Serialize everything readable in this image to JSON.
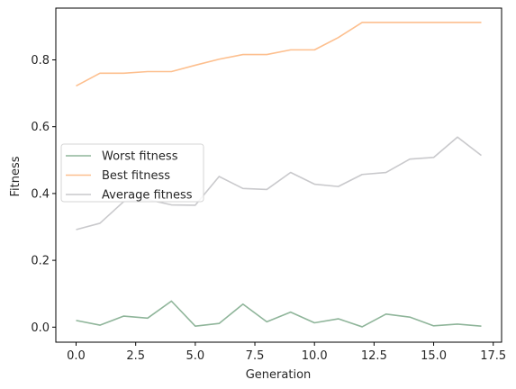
{
  "chart_data": {
    "type": "line",
    "title": "",
    "xlabel": "Generation",
    "ylabel": "Fitness",
    "xlim": [
      -0.85,
      17.85
    ],
    "ylim": [
      -0.045,
      0.955
    ],
    "xticks": [
      0.0,
      2.5,
      5.0,
      7.5,
      10.0,
      12.5,
      15.0,
      17.5
    ],
    "xtick_labels": [
      "0.0",
      "2.5",
      "5.0",
      "7.5",
      "10.0",
      "12.5",
      "15.0",
      "17.5"
    ],
    "yticks": [
      0.0,
      0.2,
      0.4,
      0.6,
      0.8
    ],
    "ytick_labels": [
      "0.0",
      "0.2",
      "0.4",
      "0.6",
      "0.8"
    ],
    "grid": false,
    "legend_position": "center-left",
    "x": [
      0,
      1,
      2,
      3,
      4,
      5,
      6,
      7,
      8,
      9,
      10,
      11,
      12,
      13,
      14,
      15,
      16,
      17
    ],
    "series": [
      {
        "name": "Worst fitness",
        "color": "#8fb59a",
        "values": [
          0.02,
          0.006,
          0.033,
          0.027,
          0.078,
          0.003,
          0.011,
          0.069,
          0.016,
          0.045,
          0.013,
          0.025,
          0.001,
          0.039,
          0.03,
          0.004,
          0.009,
          0.003
        ]
      },
      {
        "name": "Best fitness",
        "color": "#fdbf8e",
        "values": [
          0.722,
          0.76,
          0.76,
          0.765,
          0.765,
          0.784,
          0.802,
          0.816,
          0.816,
          0.83,
          0.83,
          0.867,
          0.912,
          0.912,
          0.912,
          0.912,
          0.912,
          0.912
        ]
      },
      {
        "name": "Average fitness",
        "color": "#c9c9cc",
        "values": [
          0.292,
          0.311,
          0.376,
          0.382,
          0.366,
          0.365,
          0.451,
          0.415,
          0.412,
          0.463,
          0.428,
          0.421,
          0.457,
          0.463,
          0.503,
          0.508,
          0.569,
          0.514
        ]
      }
    ]
  }
}
